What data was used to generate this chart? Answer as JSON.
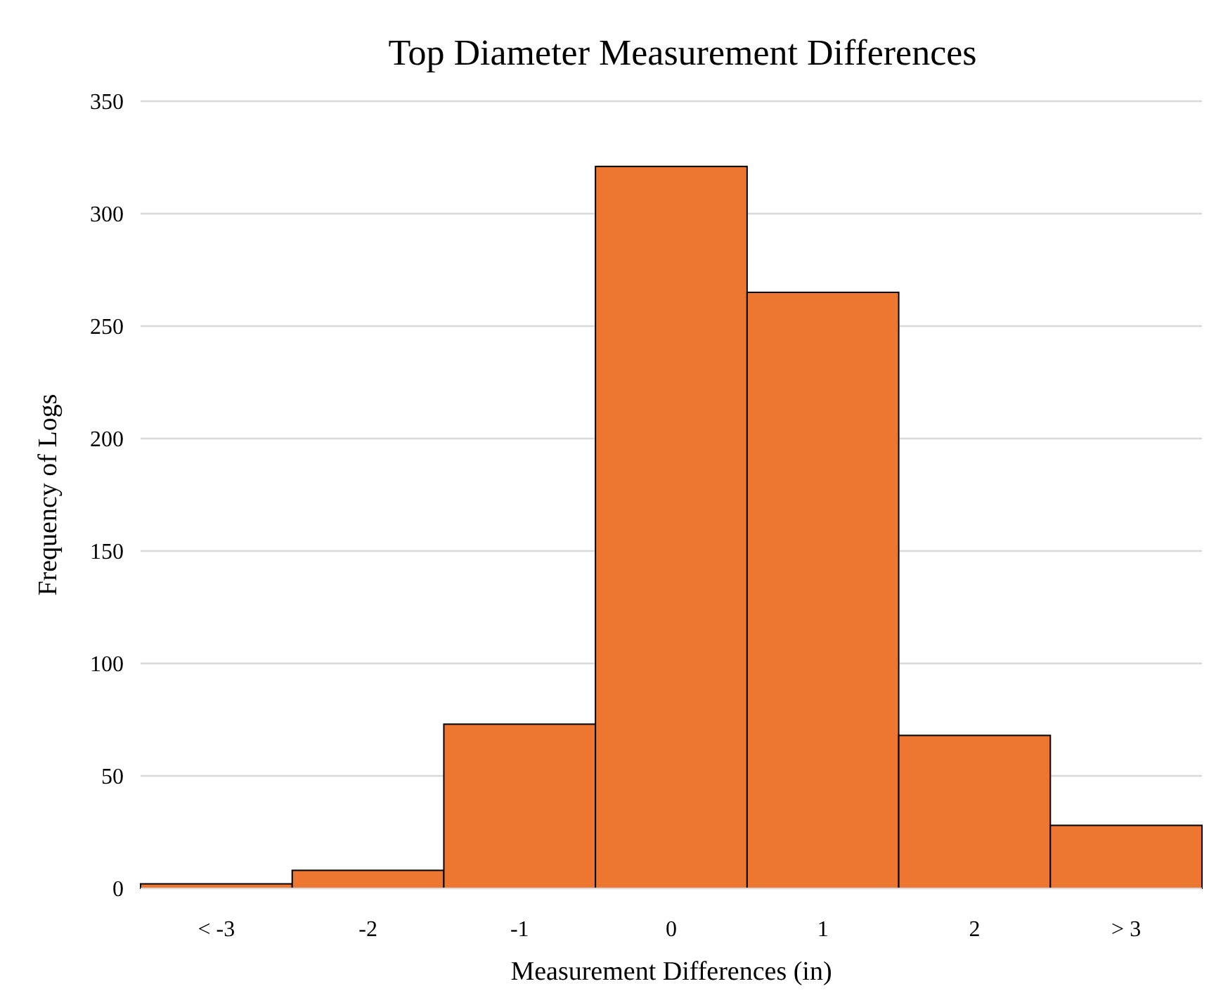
{
  "chart_data": {
    "type": "bar",
    "title": "Top Diameter Measurement Differences",
    "xlabel": "Measurement Differences (in)",
    "ylabel": "Frequency of Logs",
    "categories": [
      "< -3",
      "-2",
      "-1",
      "0",
      "1",
      "2",
      "> 3"
    ],
    "values": [
      2,
      8,
      73,
      321,
      265,
      68,
      28
    ],
    "color": "#ed7730",
    "ylim": [
      0,
      350
    ],
    "yticks": [
      0,
      50,
      100,
      150,
      200,
      250,
      300,
      350
    ],
    "grid": "y"
  }
}
